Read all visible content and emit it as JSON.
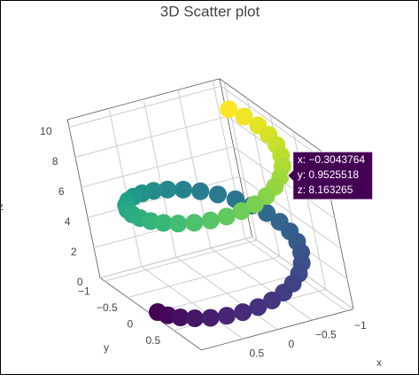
{
  "chart_data": {
    "type": "scatter3d",
    "title": "3D Scatter plot",
    "x_title": "x",
    "y_title": "y",
    "z_title": "z",
    "x": [
      1,
      0.979,
      0.918,
      0.818,
      0.685,
      0.523,
      0.34,
      0.142,
      -0.062,
      -0.263,
      -0.452,
      -0.624,
      -0.769,
      -0.882,
      -0.96,
      -0.997,
      -0.993,
      -0.948,
      -0.864,
      -0.744,
      -0.592,
      -0.416,
      -0.222,
      -0.02,
      0.184,
      0.379,
      0.557,
      0.711,
      0.84,
      0.933,
      0.988,
      1.0,
      0.971,
      0.902,
      0.795,
      0.655,
      0.488,
      0.301,
      0.102,
      -0.101,
      -0.3043764,
      -0.489,
      -0.656,
      -0.796,
      -0.902,
      -0.971,
      -0.999,
      -0.988,
      -0.932,
      -0.839
    ],
    "y": [
      0,
      0.203,
      0.397,
      0.575,
      0.729,
      0.852,
      0.94,
      0.99,
      0.998,
      0.965,
      0.892,
      0.782,
      0.639,
      0.471,
      0.28,
      0.08,
      -0.123,
      -0.32,
      -0.503,
      -0.668,
      -0.806,
      -0.909,
      -0.975,
      -1.0,
      -0.983,
      -0.925,
      -0.83,
      -0.703,
      -0.543,
      -0.36,
      -0.16,
      0.043,
      0.244,
      0.432,
      0.606,
      0.756,
      0.873,
      0.954,
      0.995,
      0.995,
      0.9525518,
      0.872,
      0.755,
      0.605,
      0.431,
      0.242,
      0.041,
      -0.157,
      -0.362,
      -0.544
    ],
    "z": [
      0,
      0.2041,
      0.4082,
      0.6122,
      0.8163,
      1.0204,
      1.2245,
      1.4286,
      1.6327,
      1.8367,
      2.0408,
      2.2449,
      2.449,
      2.6531,
      2.8571,
      3.0612,
      3.2653,
      3.4694,
      3.6735,
      3.8776,
      4.0816,
      4.2857,
      4.4898,
      4.6939,
      4.898,
      5.102,
      5.3061,
      5.5102,
      5.7143,
      5.9184,
      6.1224,
      6.3265,
      6.5306,
      6.7347,
      6.9388,
      7.1429,
      7.3469,
      7.551,
      7.7551,
      7.9592,
      8.163265,
      8.3673,
      8.5714,
      8.7755,
      8.9796,
      9.1837,
      9.3878,
      9.5918,
      9.7959,
      10
    ],
    "colorscale": [
      "#440154",
      "#482878",
      "#3e4989",
      "#31688e",
      "#26828e",
      "#1f9e89",
      "#35b779",
      "#6ece58",
      "#b5de2b",
      "#fde725"
    ],
    "xlim": [
      -1.1,
      1.1
    ],
    "ylim": [
      -1.1,
      1.1
    ],
    "zlim": [
      0,
      10.5
    ],
    "xticks": [
      {
        "value": -1,
        "label": "−1"
      },
      {
        "value": -0.5,
        "label": "−0.5"
      },
      0,
      0.5
    ],
    "yticks": [
      {
        "value": -1,
        "label": "−1"
      },
      {
        "value": -0.5,
        "label": "−0.5"
      },
      0,
      0.5
    ],
    "zticks": [
      0,
      2,
      4,
      6,
      8,
      10
    ],
    "grid": true,
    "hover": {
      "point": 40,
      "text": [
        "x: −0.3043764",
        "y: 0.9525518",
        "z: 8.163265"
      ]
    }
  }
}
